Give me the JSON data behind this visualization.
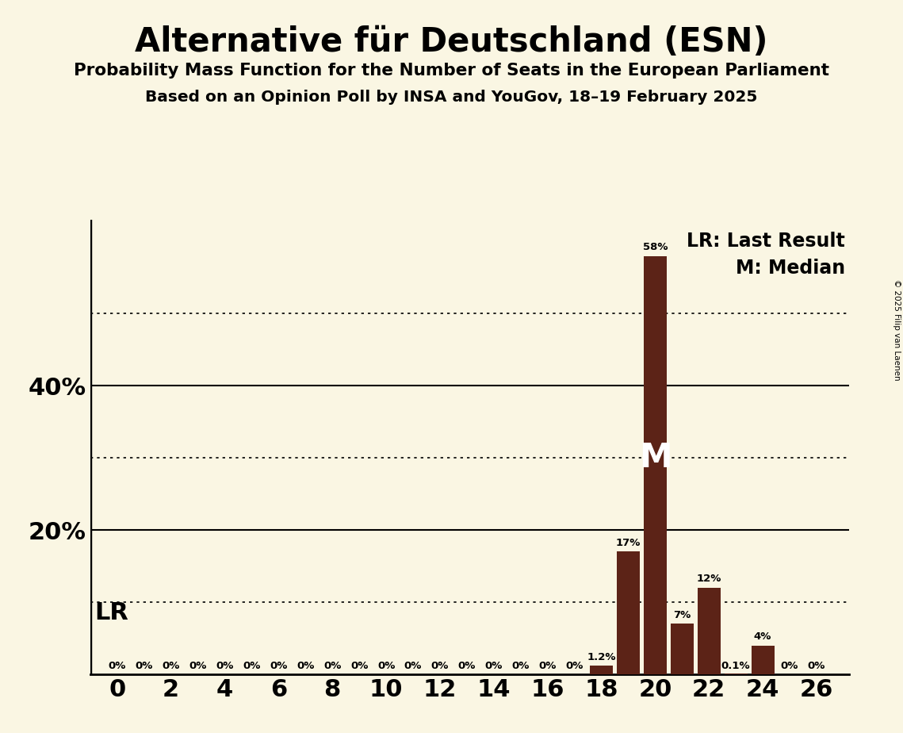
{
  "title": "Alternative für Deutschland (ESN)",
  "subtitle1": "Probability Mass Function for the Number of Seats in the European Parliament",
  "subtitle2": "Based on an Opinion Poll by INSA and YouGov, 18–19 February 2025",
  "copyright_text": "© 2025 Filip van Laenen",
  "background_color": "#FAF6E3",
  "bar_color": "#5C2317",
  "seats": [
    0,
    1,
    2,
    3,
    4,
    5,
    6,
    7,
    8,
    9,
    10,
    11,
    12,
    13,
    14,
    15,
    16,
    17,
    18,
    19,
    20,
    21,
    22,
    23,
    24,
    25,
    26
  ],
  "probabilities": [
    0.0,
    0.0,
    0.0,
    0.0,
    0.0,
    0.0,
    0.0,
    0.0,
    0.0,
    0.0,
    0.0,
    0.0,
    0.0,
    0.0,
    0.0,
    0.0,
    0.0,
    0.0,
    1.2,
    17.0,
    58.0,
    7.0,
    12.0,
    0.1,
    4.0,
    0.0,
    0.0
  ],
  "labels": [
    "0%",
    "0%",
    "0%",
    "0%",
    "0%",
    "0%",
    "0%",
    "0%",
    "0%",
    "0%",
    "0%",
    "0%",
    "0%",
    "0%",
    "0%",
    "0%",
    "0%",
    "0%",
    "1.2%",
    "17%",
    "58%",
    "7%",
    "12%",
    "0.1%",
    "4%",
    "0%",
    "0%"
  ],
  "solid_lines": [
    20.0,
    40.0
  ],
  "dotted_lines": [
    10.0,
    30.0,
    50.0
  ],
  "ylim": [
    0,
    63
  ],
  "median_seat": 20,
  "lr_seat": 19,
  "legend_lr": "LR: Last Result",
  "legend_m": "M: Median",
  "lr_label": "LR",
  "m_label": "M",
  "xtick_positions": [
    0,
    2,
    4,
    6,
    8,
    10,
    12,
    14,
    16,
    18,
    20,
    22,
    24,
    26
  ],
  "bar_width": 0.85,
  "ytick_values": [
    20.0,
    40.0
  ],
  "ytick_labels": [
    "20%",
    "40%"
  ]
}
